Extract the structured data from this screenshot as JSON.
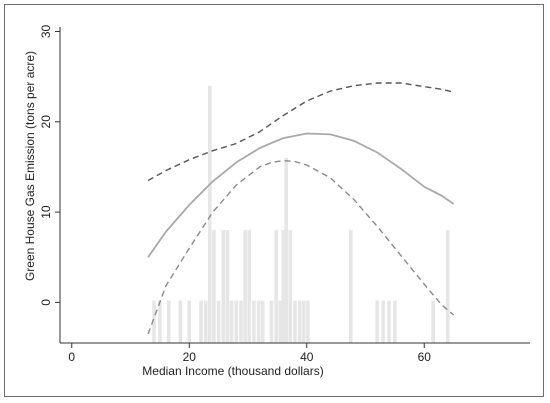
{
  "chart_data": {
    "type": "line",
    "title": "",
    "xlabel": "Median Income (thousand dollars)",
    "ylabel": "Green House Gas Emission (tons per acre)",
    "xlim": [
      -2,
      78
    ],
    "ylim": [
      -4.5,
      30.5
    ],
    "xticks": [
      0,
      20,
      40,
      60
    ],
    "yticks": [
      0,
      10,
      20,
      30
    ],
    "grid": false,
    "legend": "none",
    "colors": {
      "fitted": "#a9a9a9",
      "upper_ci": "#555555",
      "lower_ci": "#8a8a8a",
      "histogram": "#e6e6e6",
      "frame": "#6f6f6f",
      "axes": "#333333"
    },
    "series": [
      {
        "style": "solid",
        "x": [
          13,
          16,
          20,
          24,
          28,
          32,
          36,
          40,
          44,
          48,
          52,
          56,
          60,
          63,
          65
        ],
        "y": [
          5.0,
          7.8,
          10.8,
          13.4,
          15.5,
          17.1,
          18.2,
          18.7,
          18.6,
          17.9,
          16.6,
          14.8,
          12.8,
          11.8,
          10.9
        ]
      },
      {
        "style": "dashed",
        "x": [
          13,
          16,
          20,
          24,
          28,
          32,
          36,
          40,
          44,
          48,
          52,
          56,
          60,
          63,
          65
        ],
        "y": [
          13.5,
          14.6,
          15.8,
          16.8,
          17.6,
          18.9,
          20.7,
          22.3,
          23.4,
          24.0,
          24.3,
          24.3,
          23.9,
          23.6,
          23.3
        ]
      },
      {
        "style": "dashed",
        "x": [
          13,
          16,
          20,
          24,
          28,
          32,
          34,
          36,
          38,
          40,
          44,
          48,
          52,
          56,
          60,
          63,
          65
        ],
        "y": [
          -3.5,
          1.8,
          6.0,
          10.0,
          13.0,
          15.0,
          15.5,
          15.7,
          15.6,
          15.2,
          13.8,
          11.4,
          8.4,
          5.2,
          2.0,
          -0.3,
          -1.4
        ]
      }
    ],
    "histogram": {
      "x": [
        14,
        15,
        16.5,
        18.5,
        20,
        22,
        22.8,
        23.5,
        24.2,
        25,
        25.8,
        26.5,
        27.2,
        28,
        28.8,
        29.5,
        30.2,
        31,
        31.8,
        32.5,
        34,
        34.8,
        35.5,
        36,
        36.5,
        37.2,
        38,
        38.8,
        39.5,
        40.2,
        47.5,
        52,
        53,
        54,
        55,
        61.5,
        64
      ],
      "height": [
        4.7,
        4.7,
        4.7,
        4.7,
        4.7,
        4.7,
        4.7,
        28.5,
        12.5,
        4.7,
        12.5,
        12.5,
        4.7,
        4.7,
        4.7,
        12.5,
        12.5,
        4.7,
        4.7,
        4.7,
        4.7,
        12.5,
        4.7,
        12.5,
        20.5,
        12.5,
        4.7,
        4.7,
        4.7,
        4.7,
        12.5,
        4.7,
        4.7,
        4.7,
        4.7,
        4.7,
        12.5
      ]
    }
  }
}
